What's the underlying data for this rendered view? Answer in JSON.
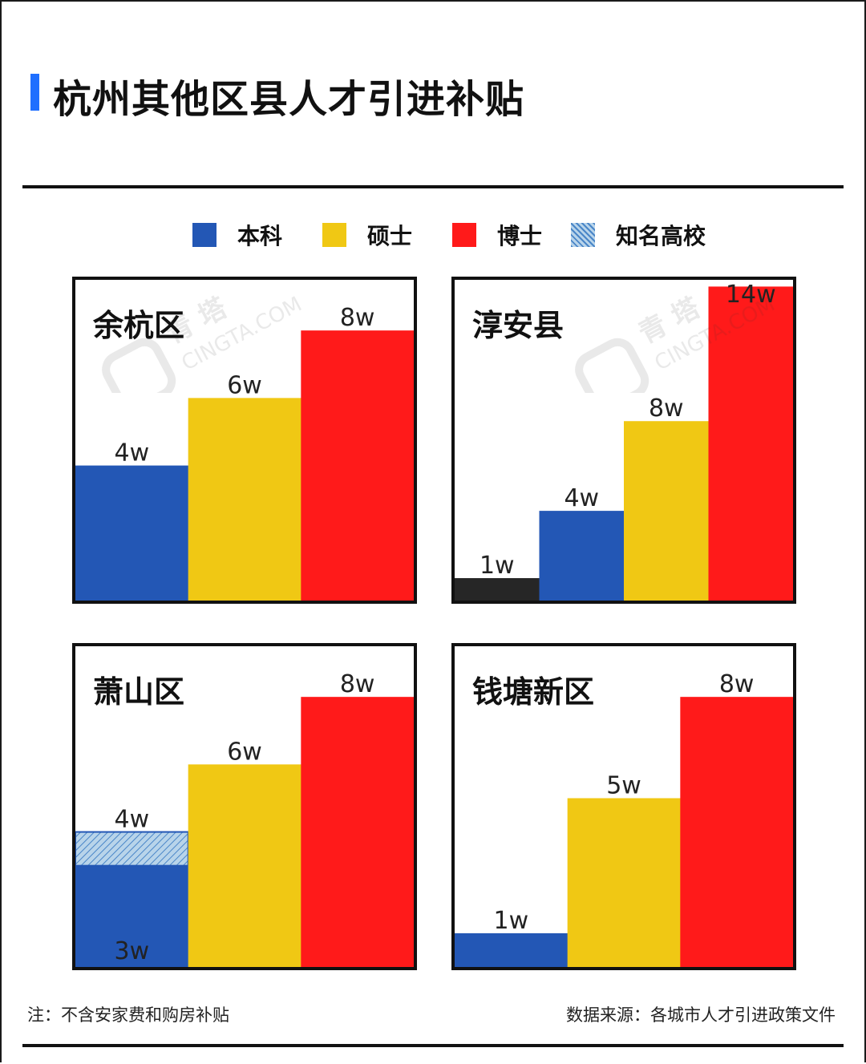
{
  "title": "杭州其他区县人才引进补贴",
  "colors": {
    "accent": "#1f6fff",
    "本科": "#2357b5",
    "硕士": "#f0c814",
    "博士": "#ff1a1a",
    "知名高校": "#b8d4ea",
    "其他": "#262626"
  },
  "legend": [
    {
      "label": "本科",
      "color_key": "本科"
    },
    {
      "label": "硕士",
      "color_key": "硕士"
    },
    {
      "label": "博士",
      "color_key": "博士"
    },
    {
      "label": "知名高校",
      "color_key": "知名高校",
      "pattern": "hatch"
    }
  ],
  "chart_data": [
    {
      "type": "bar",
      "title": "余杭区",
      "unit": "w",
      "ylim": [
        0,
        9.5
      ],
      "bars": [
        {
          "category": "本科",
          "value": 4,
          "label": "4w"
        },
        {
          "category": "硕士",
          "value": 6,
          "label": "6w"
        },
        {
          "category": "博士",
          "value": 8,
          "label": "8w"
        }
      ]
    },
    {
      "type": "bar",
      "title": "淳安县",
      "unit": "w",
      "ylim": [
        0,
        14.3
      ],
      "bars": [
        {
          "category": "其他",
          "value": 1,
          "label": "1w"
        },
        {
          "category": "本科",
          "value": 4,
          "label": "4w"
        },
        {
          "category": "硕士",
          "value": 8,
          "label": "8w"
        },
        {
          "category": "博士",
          "value": 14,
          "label": "14w"
        }
      ]
    },
    {
      "type": "bar",
      "title": "萧山区",
      "unit": "w",
      "ylim": [
        0,
        9.5
      ],
      "bars": [
        {
          "category": "本科",
          "value": 3,
          "label": "3w",
          "label_inside": true,
          "stack": [
            {
              "category": "知名高校",
              "value": 1,
              "pattern": "hatch"
            }
          ],
          "top_label": "4w"
        },
        {
          "category": "硕士",
          "value": 6,
          "label": "6w"
        },
        {
          "category": "博士",
          "value": 8,
          "label": "8w"
        }
      ]
    },
    {
      "type": "bar",
      "title": "钱塘新区",
      "unit": "w",
      "ylim": [
        0,
        9.5
      ],
      "bars": [
        {
          "category": "本科",
          "value": 1,
          "label": "1w"
        },
        {
          "category": "硕士",
          "value": 5,
          "label": "5w"
        },
        {
          "category": "博士",
          "value": 8,
          "label": "8w"
        }
      ]
    }
  ],
  "watermark": {
    "text": "青 塔",
    "sub": "CINGTA.COM"
  },
  "footer": {
    "note": "注：不含安家费和购房补贴",
    "source": "数据来源：各城市人才引进政策文件"
  }
}
